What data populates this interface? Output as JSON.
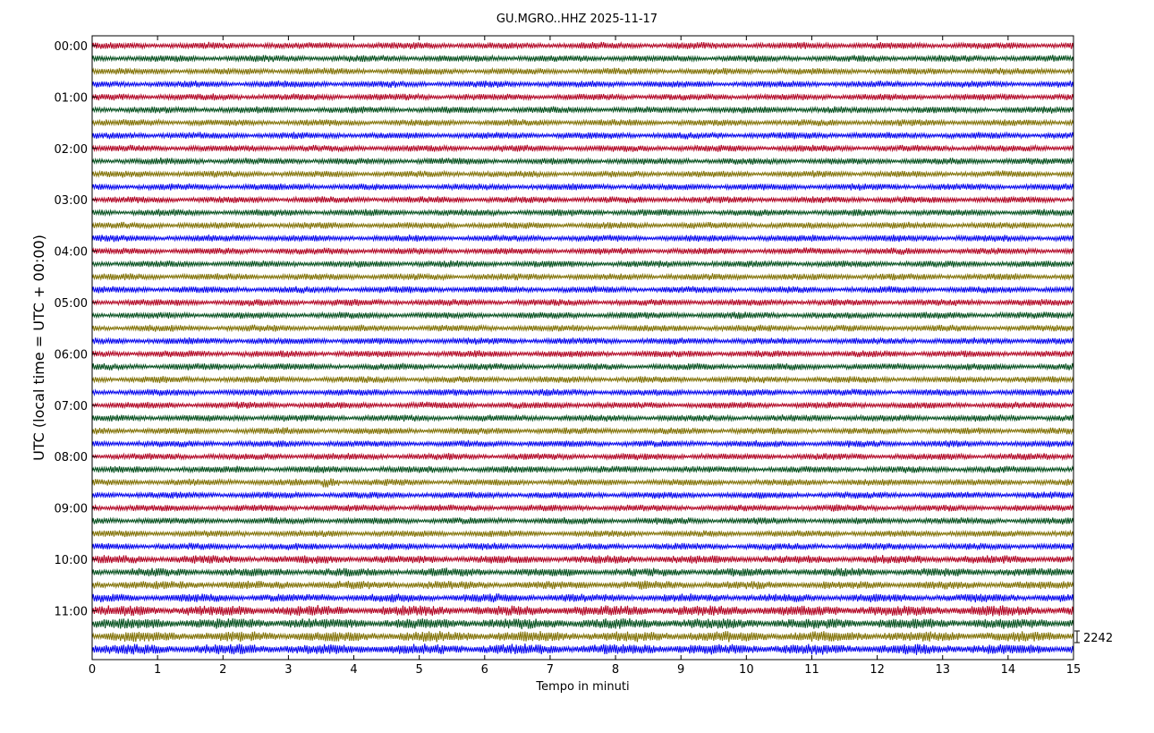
{
  "chart_data": {
    "type": "line",
    "title": "GU.MGRO..HHZ 2025-11-17",
    "xlabel": "Tempo in minuti",
    "ylabel": "UTC (local time = UTC + 00:00)",
    "xlim": [
      0,
      15
    ],
    "x_ticks": [
      "0",
      "1",
      "2",
      "3",
      "4",
      "5",
      "6",
      "7",
      "8",
      "9",
      "10",
      "11",
      "12",
      "13",
      "14",
      "15"
    ],
    "y_ticks": [
      "00:00",
      "01:00",
      "02:00",
      "03:00",
      "04:00",
      "05:00",
      "06:00",
      "07:00",
      "08:00",
      "09:00",
      "10:00",
      "11:00"
    ],
    "traces_per_hour": 4,
    "trace_count": 48,
    "trace_minutes": 15,
    "colors": [
      "#b00020",
      "#004d1a",
      "#7f6f00",
      "#0000ee"
    ],
    "scale_label": "2242",
    "events": [
      {
        "trace": 34,
        "minute": 3.65,
        "note": "burst"
      }
    ]
  }
}
